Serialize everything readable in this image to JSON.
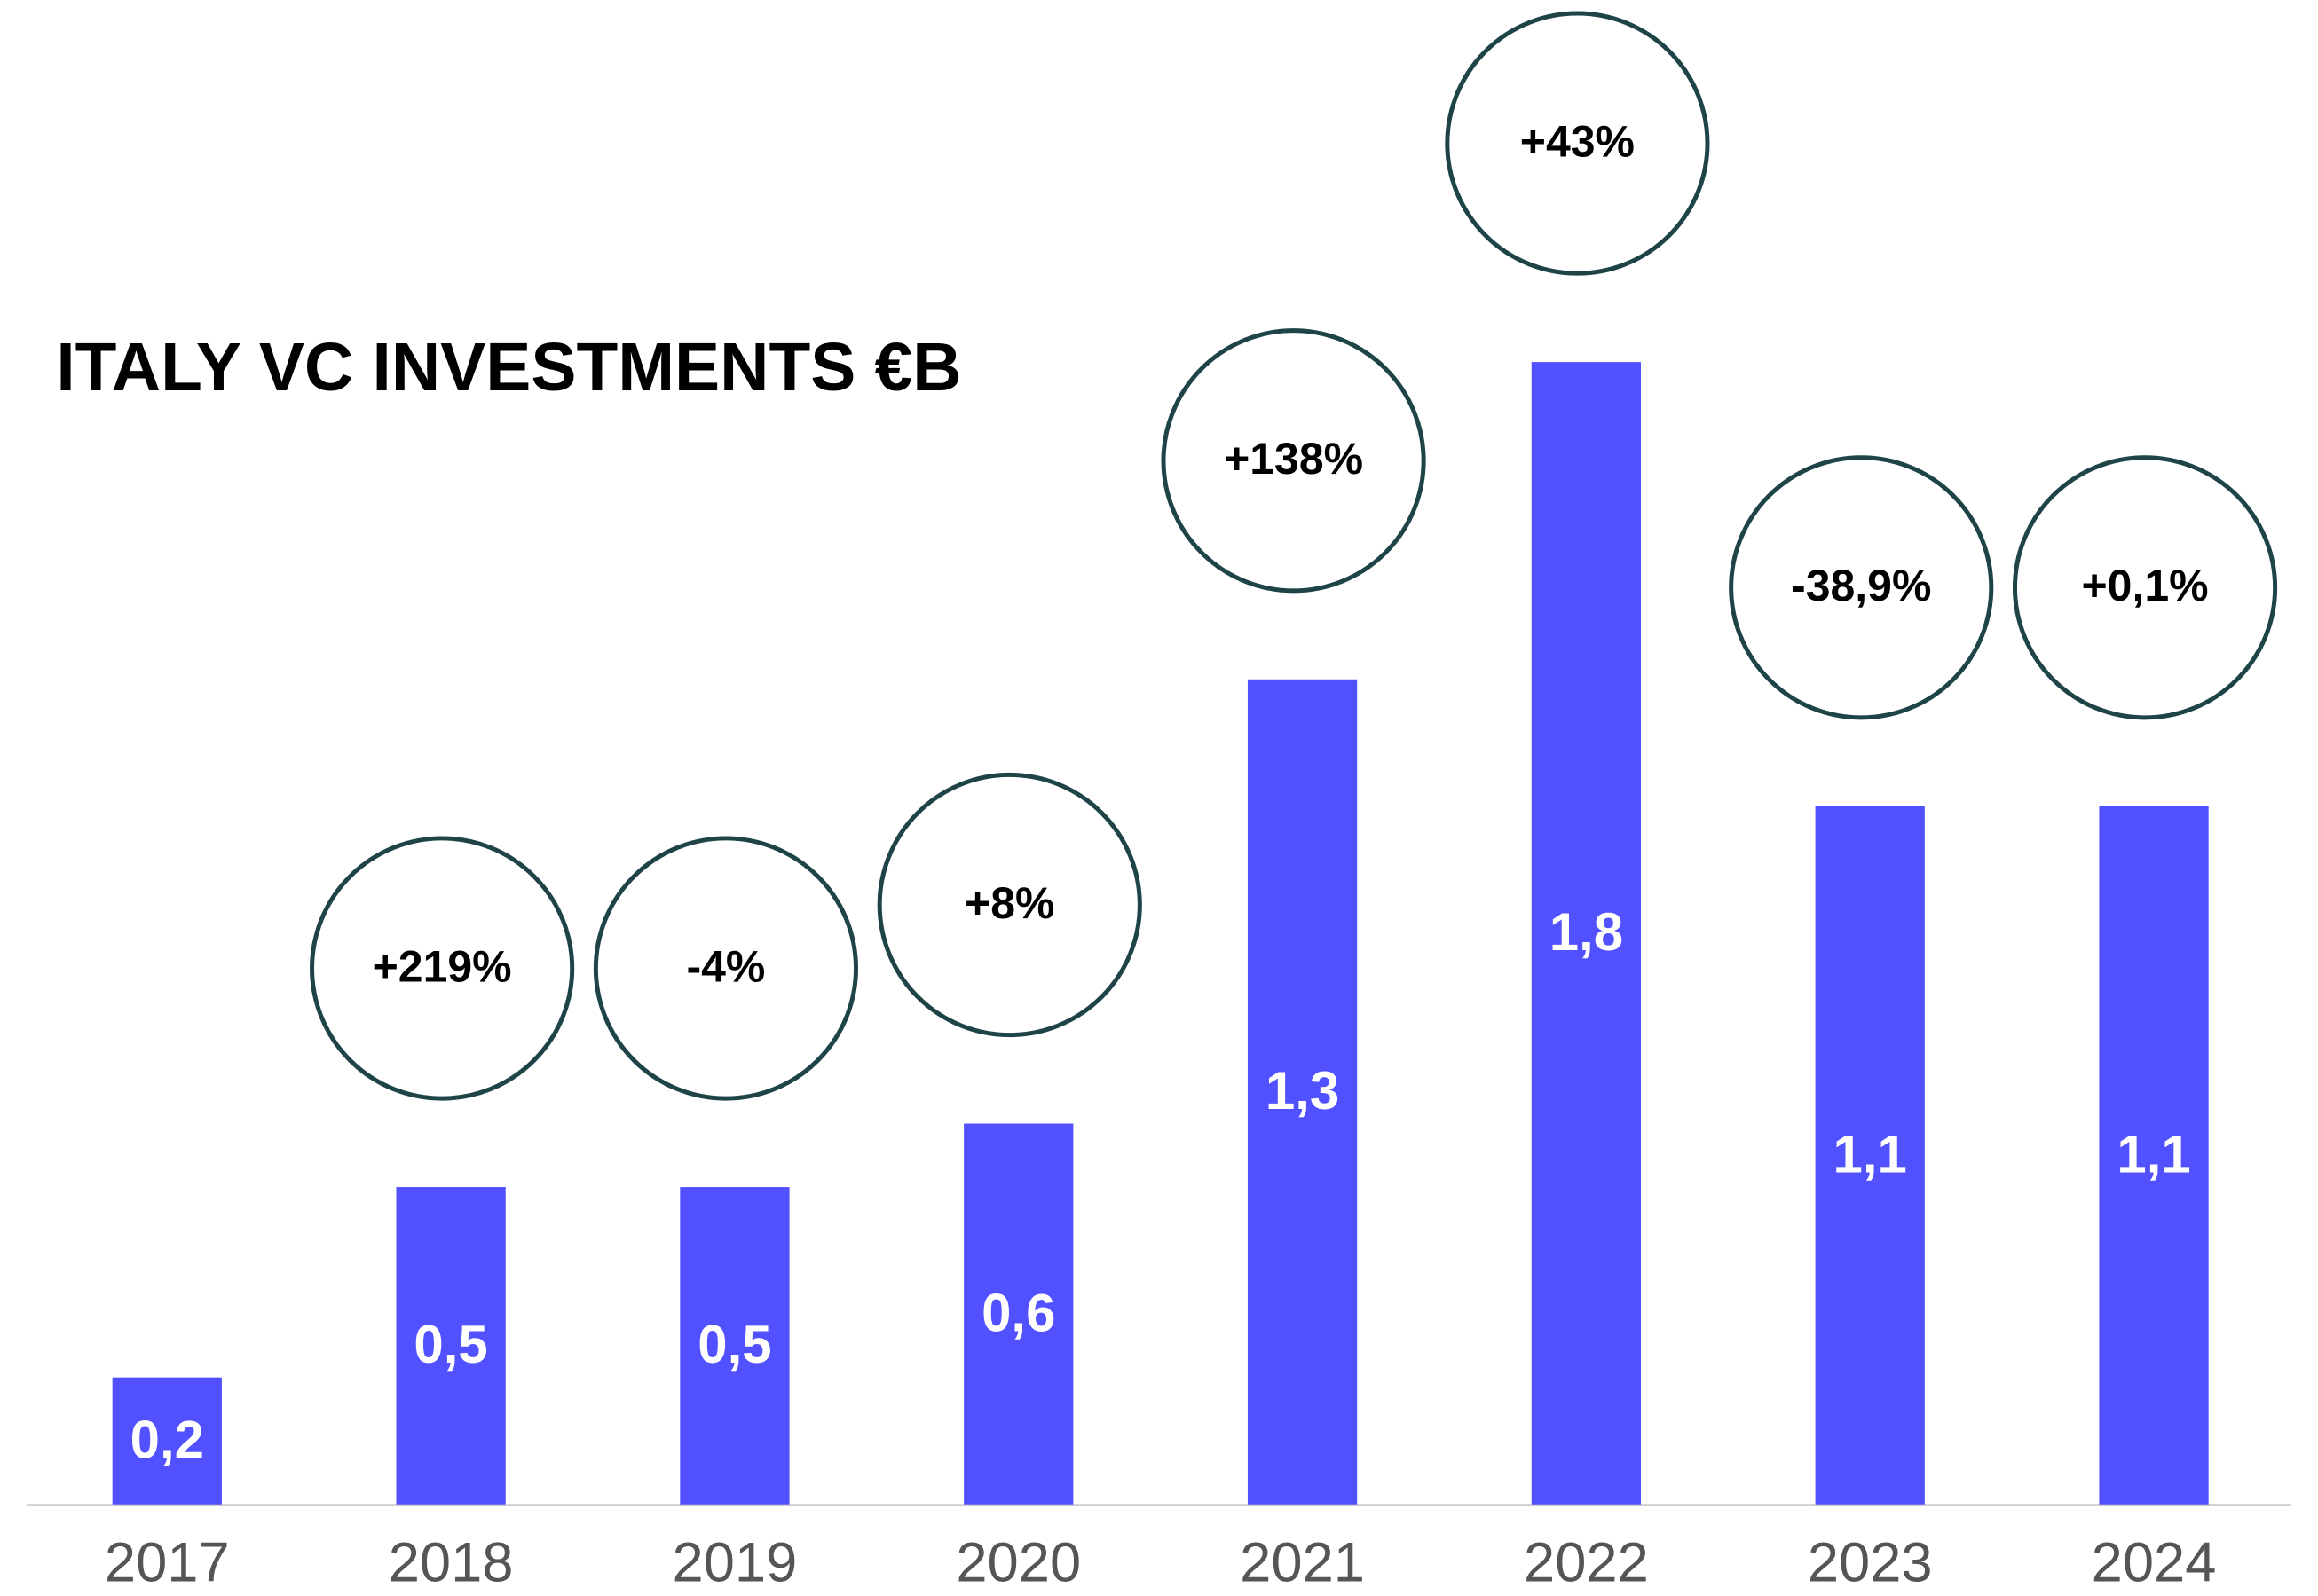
{
  "chart_data": {
    "type": "bar",
    "title": "ITALY VC INVESTMENTS €B",
    "categories": [
      "2017",
      "2018",
      "2019",
      "2020",
      "2021",
      "2022",
      "2023",
      "2024"
    ],
    "values": [
      0.2,
      0.5,
      0.5,
      0.6,
      1.3,
      1.8,
      1.1,
      1.1
    ],
    "value_labels": [
      "0,2",
      "0,5",
      "0,5",
      "0,6",
      "1,3",
      "1,8",
      "1,1",
      "1,1"
    ],
    "change_labels": [
      null,
      "+219%",
      "-4%",
      "+8%",
      "+138%",
      "+43%",
      "-38,9%",
      "+0,1%"
    ],
    "color": "#5151ff",
    "ylim": [
      0,
      1.8
    ]
  }
}
